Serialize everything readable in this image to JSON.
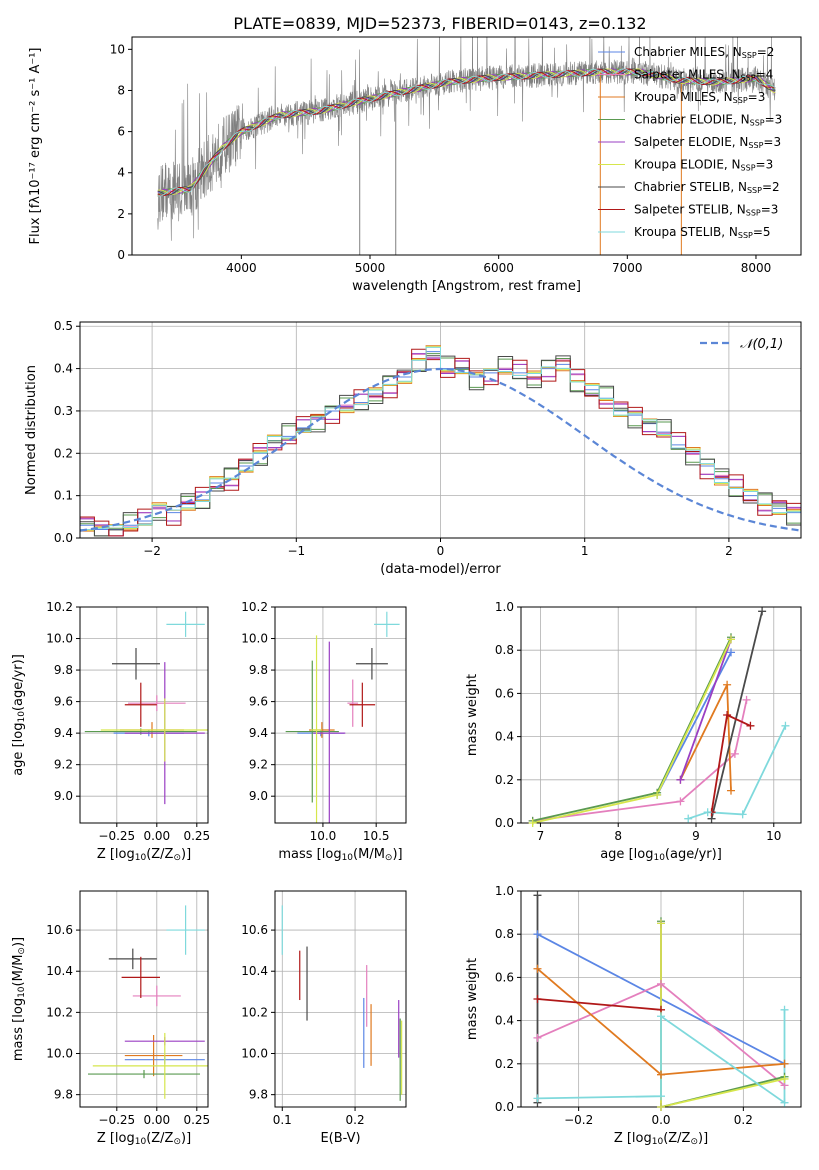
{
  "figure": {
    "title": "PLATE=0839, MJD=52373, FIBERID=0143, z=0.132"
  },
  "colors": {
    "spectrum": "#808080",
    "grid": "#b0b0b0",
    "models": {
      "Chabrier MILES": "#5b86e5",
      "Salpeter MILES": "#e47fbd",
      "Kroupa MILES": "#e07a20",
      "Chabrier ELODIE": "#5a9a50",
      "Salpeter ELODIE": "#9a3fc3",
      "Kroupa ELODIE": "#d6e64c",
      "Chabrier STELIB": "#4a4a4a",
      "Salpeter STELIB": "#b01818",
      "Kroupa STELIB": "#7fd9dc"
    }
  },
  "chart_data": [
    {
      "id": "spectrum",
      "type": "line",
      "xlabel": "wavelength [Angstrom, rest frame]",
      "ylabel": "Flux [f$_\\lambda$10$^{-17}$ erg cm$^{-2}$ s$^{-1}$ A$^{-1}$]",
      "ylabel_display": "Flux [fλ10⁻¹⁷ erg cm⁻² s⁻¹ A⁻¹]",
      "xlim": [
        3150,
        8350
      ],
      "ylim": [
        0,
        10.6
      ],
      "xticks": [
        4000,
        5000,
        6000,
        7000,
        8000
      ],
      "yticks": [
        0,
        2,
        4,
        6,
        8,
        10
      ],
      "grid": false,
      "legend_position": "top-right",
      "continuum_x": [
        3350,
        3600,
        3850,
        4000,
        4300,
        4600,
        5000,
        5300,
        5600,
        5900,
        6200,
        6500,
        6800,
        7100,
        7400,
        7700,
        8000,
        8150
      ],
      "continuum_y": [
        3.0,
        3.2,
        5.2,
        6.0,
        6.8,
        7.0,
        7.6,
        8.0,
        8.4,
        8.6,
        8.7,
        8.8,
        8.9,
        8.9,
        8.5,
        8.4,
        8.6,
        8.0
      ],
      "legend": [
        {
          "label": "Chabrier MILES, N$_{SSP}$=2",
          "base": "Chabrier MILES, N",
          "sub": "SSP",
          "tail": "=2"
        },
        {
          "label": "Salpeter MILES, N$_{SSP}$=4",
          "base": "Salpeter MILES, N",
          "sub": "SSP",
          "tail": "=4"
        },
        {
          "label": "Kroupa MILES, N$_{SSP}$=3",
          "base": "Kroupa MILES, N",
          "sub": "SSP",
          "tail": "=3"
        },
        {
          "label": "Chabrier ELODIE, N$_{SSP}$=3",
          "base": "Chabrier ELODIE, N",
          "sub": "SSP",
          "tail": "=3"
        },
        {
          "label": "Salpeter ELODIE, N$_{SSP}$=3",
          "base": "Salpeter ELODIE, N",
          "sub": "SSP",
          "tail": "=3"
        },
        {
          "label": "Kroupa ELODIE, N$_{SSP}$=3",
          "base": "Kroupa ELODIE, N",
          "sub": "SSP",
          "tail": "=3"
        },
        {
          "label": "Chabrier STELIB, N$_{SSP}$=2",
          "base": "Chabrier STELIB, N",
          "sub": "SSP",
          "tail": "=2"
        },
        {
          "label": "Salpeter STELIB, N$_{SSP}$=3",
          "base": "Salpeter STELIB, N",
          "sub": "SSP",
          "tail": "=3"
        },
        {
          "label": "Kroupa STELIB, N$_{SSP}$=5",
          "base": "Kroupa STELIB, N",
          "sub": "SSP",
          "tail": "=5"
        }
      ]
    },
    {
      "id": "residuals",
      "type": "histogram",
      "xlabel": "(data-model)/error",
      "ylabel": "Normed distribution",
      "xlim": [
        -2.5,
        2.5
      ],
      "ylim": [
        0,
        0.51
      ],
      "xticks": [
        -2,
        -1,
        0,
        1,
        2
      ],
      "yticks": [
        0.0,
        0.1,
        0.2,
        0.3,
        0.4,
        0.5
      ],
      "grid": true,
      "legend_position": "top-right",
      "gaussian_label": "𝒩(0,1)",
      "bin_edges_start": -2.5,
      "bin_width": 0.1,
      "base_values": [
        0.03,
        0.02,
        0.02,
        0.03,
        0.04,
        0.07,
        0.06,
        0.08,
        0.09,
        0.13,
        0.14,
        0.17,
        0.2,
        0.23,
        0.24,
        0.26,
        0.28,
        0.3,
        0.31,
        0.32,
        0.34,
        0.36,
        0.38,
        0.42,
        0.44,
        0.4,
        0.4,
        0.38,
        0.39,
        0.4,
        0.39,
        0.38,
        0.4,
        0.41,
        0.37,
        0.35,
        0.33,
        0.3,
        0.29,
        0.27,
        0.25,
        0.22,
        0.2,
        0.17,
        0.14,
        0.12,
        0.1,
        0.08,
        0.07,
        0.06,
        0.05,
        0.04,
        0.04,
        0.03,
        0.03,
        0.03,
        0.02,
        0.02,
        0.02,
        0.02
      ],
      "offsets": [
        0.0,
        0.02,
        -0.015,
        0.025,
        -0.02,
        0.012,
        -0.03,
        0.03,
        -0.01
      ]
    },
    {
      "id": "age_vs_Z",
      "type": "errorbar",
      "xlabel": "Z [log$_{10}$(Z/Z$_\\odot$)]",
      "ylabel": "age  [log$_{10}$(age/yr)]",
      "xlim": [
        -0.48,
        0.32
      ],
      "ylim": [
        8.83,
        10.2
      ],
      "xticks": [
        -0.25,
        0.0,
        0.25
      ],
      "xticklabels": [
        "−0.25",
        "0.00",
        "0.25"
      ],
      "yticks": [
        9.0,
        9.2,
        9.4,
        9.6,
        9.8,
        10.0,
        10.2
      ],
      "grid": true,
      "points": [
        {
          "model": "Chabrier MILES",
          "x": -0.05,
          "xerr": 0.22,
          "y": 9.4,
          "yerr": 0.02
        },
        {
          "model": "Salpeter MILES",
          "x": 0.0,
          "xerr": 0.18,
          "y": 9.59,
          "yerr": 0.05
        },
        {
          "model": "Kroupa MILES",
          "x": -0.03,
          "xerr": 0.2,
          "y": 9.42,
          "yerr": 0.05
        },
        {
          "model": "Chabrier ELODIE",
          "x": -0.1,
          "xerr": 0.35,
          "y": 9.41,
          "yerr": 0.02
        },
        {
          "model": "Salpeter ELODIE",
          "x": 0.05,
          "xerr": 0.25,
          "y": 9.4,
          "yerr": 0.45
        },
        {
          "model": "Kroupa ELODIE",
          "x": 0.05,
          "xerr": 0.4,
          "y": 9.42,
          "yerr": 0.2
        },
        {
          "model": "Chabrier STELIB",
          "x": -0.13,
          "xerr": 0.15,
          "y": 9.84,
          "yerr": 0.1
        },
        {
          "model": "Salpeter STELIB",
          "x": -0.1,
          "xerr": 0.1,
          "y": 9.58,
          "yerr": 0.14
        },
        {
          "model": "Kroupa STELIB",
          "x": 0.18,
          "xerr": 0.12,
          "y": 10.09,
          "yerr": 0.08
        }
      ]
    },
    {
      "id": "age_vs_mass",
      "type": "errorbar",
      "xlabel": "mass [log$_{10}$(M/M$_\\odot$)]",
      "xlim": [
        9.55,
        10.78
      ],
      "ylim": [
        8.83,
        10.2
      ],
      "xticks": [
        10.0,
        10.5
      ],
      "xticklabels": [
        "10.0",
        "10.5"
      ],
      "yticks": [
        9.0,
        9.2,
        9.4,
        9.6,
        9.8,
        10.0,
        10.2
      ],
      "grid": true,
      "points": [
        {
          "model": "Chabrier MILES",
          "x": 9.98,
          "xerr": 0.22,
          "y": 9.4,
          "yerr": 0.02
        },
        {
          "model": "Salpeter MILES",
          "x": 10.28,
          "xerr": 0.05,
          "y": 9.59,
          "yerr": 0.15
        },
        {
          "model": "Kroupa MILES",
          "x": 9.99,
          "xerr": 0.12,
          "y": 9.42,
          "yerr": 0.05
        },
        {
          "model": "Chabrier ELODIE",
          "x": 9.9,
          "xerr": 0.25,
          "y": 9.41,
          "yerr": 0.45
        },
        {
          "model": "Salpeter ELODIE",
          "x": 10.06,
          "xerr": 0.15,
          "y": 9.4,
          "yerr": 0.58
        },
        {
          "model": "Kroupa ELODIE",
          "x": 9.94,
          "xerr": 0.05,
          "y": 9.42,
          "yerr": 0.6
        },
        {
          "model": "Chabrier STELIB",
          "x": 10.46,
          "xerr": 0.15,
          "y": 9.84,
          "yerr": 0.1
        },
        {
          "model": "Salpeter STELIB",
          "x": 10.37,
          "xerr": 0.12,
          "y": 9.58,
          "yerr": 0.14
        },
        {
          "model": "Kroupa STELIB",
          "x": 10.6,
          "xerr": 0.12,
          "y": 10.09,
          "yerr": 0.08
        }
      ]
    },
    {
      "id": "weight_vs_age",
      "type": "line",
      "xlabel": "age  [log$_{10}$(age/yr)]",
      "ylabel": "mass weight",
      "xlim": [
        6.75,
        10.35
      ],
      "ylim": [
        0,
        1.0
      ],
      "xticks": [
        7,
        8,
        9,
        10
      ],
      "yticks": [
        0.0,
        0.2,
        0.4,
        0.6,
        0.8,
        1.0
      ],
      "grid": true,
      "series": [
        {
          "model": "Chabrier MILES",
          "x": [
            8.5,
            9.45
          ],
          "y": [
            0.13,
            0.79
          ]
        },
        {
          "model": "Salpeter MILES",
          "x": [
            6.9,
            8.8,
            9.5,
            9.65
          ],
          "y": [
            0.01,
            0.1,
            0.32,
            0.57
          ]
        },
        {
          "model": "Kroupa MILES",
          "x": [
            8.8,
            9.4,
            9.45
          ],
          "y": [
            0.2,
            0.64,
            0.15
          ]
        },
        {
          "model": "Chabrier ELODIE",
          "x": [
            6.9,
            8.5,
            9.45
          ],
          "y": [
            0.01,
            0.14,
            0.86
          ]
        },
        {
          "model": "Salpeter ELODIE",
          "x": [
            8.8,
            9.45
          ],
          "y": [
            0.2,
            0.85
          ]
        },
        {
          "model": "Kroupa ELODIE",
          "x": [
            6.9,
            8.5,
            9.45
          ],
          "y": [
            0.0,
            0.13,
            0.85
          ]
        },
        {
          "model": "Chabrier STELIB",
          "x": [
            9.2,
            9.85
          ],
          "y": [
            0.02,
            0.98
          ]
        },
        {
          "model": "Salpeter STELIB",
          "x": [
            9.2,
            9.4,
            9.7
          ],
          "y": [
            0.05,
            0.5,
            0.45
          ]
        },
        {
          "model": "Kroupa STELIB",
          "x": [
            8.9,
            9.15,
            9.6,
            10.15
          ],
          "y": [
            0.02,
            0.05,
            0.04,
            0.45
          ]
        }
      ]
    },
    {
      "id": "mass_vs_Z",
      "type": "errorbar",
      "xlabel": "Z [log$_{10}$(Z/Z$_\\odot$)]",
      "ylabel": "mass [log$_{10}$(M/M$_\\odot$)]",
      "xlim": [
        -0.48,
        0.32
      ],
      "ylim": [
        9.74,
        10.79
      ],
      "xticks": [
        -0.25,
        0.0,
        0.25
      ],
      "xticklabels": [
        "−0.25",
        "0.00",
        "0.25"
      ],
      "yticks": [
        9.8,
        10.0,
        10.2,
        10.4,
        10.6
      ],
      "grid": true,
      "points": [
        {
          "model": "Chabrier MILES",
          "x": 0.05,
          "xerr": 0.25,
          "y": 9.97,
          "yerr": 0.02
        },
        {
          "model": "Salpeter MILES",
          "x": 0.0,
          "xerr": 0.15,
          "y": 10.28,
          "yerr": 0.05
        },
        {
          "model": "Kroupa MILES",
          "x": -0.02,
          "xerr": 0.18,
          "y": 9.99,
          "yerr": 0.1
        },
        {
          "model": "Chabrier ELODIE",
          "x": -0.08,
          "xerr": 0.35,
          "y": 9.9,
          "yerr": 0.02
        },
        {
          "model": "Salpeter ELODIE",
          "x": 0.05,
          "xerr": 0.25,
          "y": 10.06,
          "yerr": 0.02
        },
        {
          "model": "Kroupa ELODIE",
          "x": 0.05,
          "xerr": 0.45,
          "y": 9.94,
          "yerr": 0.16
        },
        {
          "model": "Chabrier STELIB",
          "x": -0.15,
          "xerr": 0.15,
          "y": 10.46,
          "yerr": 0.05
        },
        {
          "model": "Salpeter STELIB",
          "x": -0.1,
          "xerr": 0.12,
          "y": 10.37,
          "yerr": 0.1
        },
        {
          "model": "Kroupa STELIB",
          "x": 0.18,
          "xerr": 0.12,
          "y": 10.6,
          "yerr": 0.12
        }
      ]
    },
    {
      "id": "mass_vs_ebv",
      "type": "errorbar",
      "xlabel": "E(B-V)",
      "xlim": [
        0.09,
        0.27
      ],
      "ylim": [
        9.74,
        10.79
      ],
      "xticks": [
        0.1,
        0.2
      ],
      "xticklabels": [
        "0.1",
        "0.2"
      ],
      "yticks": [
        9.8,
        10.0,
        10.2,
        10.4,
        10.6
      ],
      "grid": true,
      "points": [
        {
          "model": "Chabrier MILES",
          "x": 0.212,
          "y": 10.1,
          "yerr": 0.17
        },
        {
          "model": "Salpeter MILES",
          "x": 0.216,
          "y": 10.28,
          "yerr": 0.15
        },
        {
          "model": "Kroupa MILES",
          "x": 0.222,
          "y": 10.09,
          "yerr": 0.15
        },
        {
          "model": "Chabrier ELODIE",
          "x": 0.262,
          "y": 9.97,
          "yerr": 0.2
        },
        {
          "model": "Salpeter ELODIE",
          "x": 0.26,
          "y": 10.12,
          "yerr": 0.14
        },
        {
          "model": "Kroupa ELODIE",
          "x": 0.264,
          "y": 9.98,
          "yerr": 0.18
        },
        {
          "model": "Chabrier STELIB",
          "x": 0.134,
          "y": 10.34,
          "yerr": 0.18
        },
        {
          "model": "Salpeter STELIB",
          "x": 0.124,
          "y": 10.38,
          "yerr": 0.12
        },
        {
          "model": "Kroupa STELIB",
          "x": 0.1,
          "y": 10.6,
          "yerr": 0.12
        }
      ]
    },
    {
      "id": "weight_vs_Z",
      "type": "line",
      "xlabel": "Z [log$_{10}$(Z/Z$_\\odot$)]",
      "ylabel": "mass weight",
      "xlim": [
        -0.34,
        0.34
      ],
      "ylim": [
        0,
        1.0
      ],
      "xticks": [
        -0.2,
        0.0,
        0.2
      ],
      "xticklabels": [
        "−0.2",
        "0.0",
        "0.2"
      ],
      "yticks": [
        0.0,
        0.2,
        0.4,
        0.6,
        0.8,
        1.0
      ],
      "grid": true,
      "series": [
        {
          "model": "Chabrier MILES",
          "x": [
            -0.3,
            0.3
          ],
          "y": [
            0.8,
            0.2
          ]
        },
        {
          "model": "Salpeter MILES",
          "x": [
            -0.3,
            0.0,
            0.3
          ],
          "y": [
            0.32,
            0.57,
            0.1
          ]
        },
        {
          "model": "Kroupa MILES",
          "x": [
            -0.3,
            0.0,
            0.0,
            0.3
          ],
          "y": [
            0.64,
            0.15,
            0.15,
            0.2
          ]
        },
        {
          "model": "Chabrier ELODIE",
          "x": [
            0.0,
            0.0,
            0.3
          ],
          "y": [
            0.86,
            0.0,
            0.14
          ]
        },
        {
          "model": "Salpeter ELODIE",
          "x": [
            0.0,
            0.0
          ],
          "y": [
            0.85,
            0.0
          ]
        },
        {
          "model": "Kroupa ELODIE",
          "x": [
            0.0,
            0.0,
            0.3
          ],
          "y": [
            0.85,
            0.0,
            0.13
          ]
        },
        {
          "model": "Chabrier STELIB",
          "x": [
            -0.3,
            -0.3
          ],
          "y": [
            0.98,
            0.02
          ]
        },
        {
          "model": "Salpeter STELIB",
          "x": [
            -0.3,
            0.0
          ],
          "y": [
            0.5,
            0.45
          ]
        },
        {
          "model": "Kroupa STELIB",
          "x": [
            -0.3,
            0.0,
            0.0,
            0.3,
            0.3
          ],
          "y": [
            0.04,
            0.05,
            0.42,
            0.02,
            0.45
          ]
        }
      ]
    }
  ]
}
